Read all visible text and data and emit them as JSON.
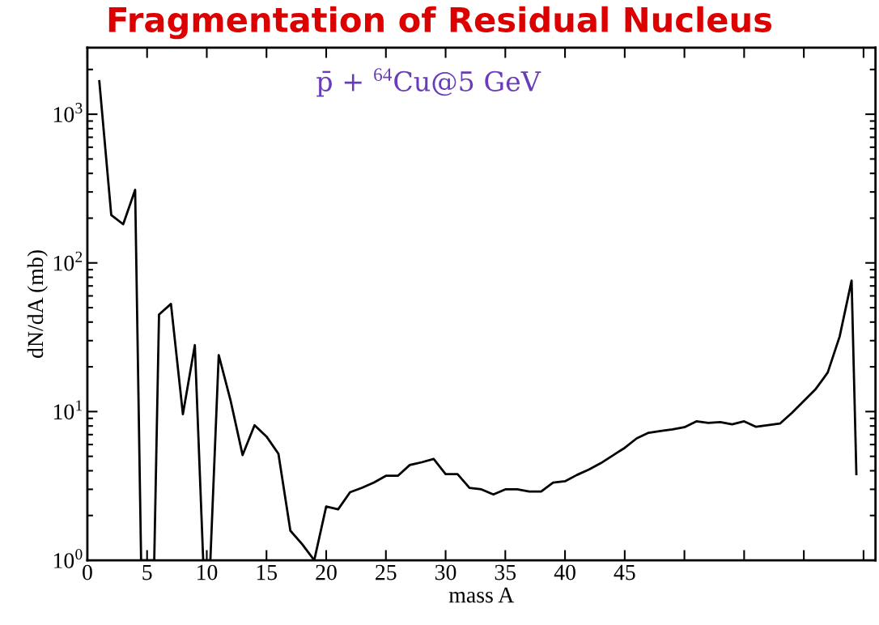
{
  "chart_data": {
    "type": "line",
    "title": "Fragmentation of Residual Nucleus",
    "xlabel": "mass A",
    "ylabel": "dN/dA (mb)",
    "annotations": [
      "p̄ + $^{64}$Cu@5 GeV"
    ],
    "log": true,
    "grid": false,
    "marker": "none",
    "line_style": "solid",
    "xlim": [
      0,
      66
    ],
    "xticks": [
      0,
      5,
      10,
      15,
      20,
      25,
      30,
      35,
      40,
      45,
      {
        "value": 50,
        "label": null
      },
      {
        "value": 55,
        "label": null
      },
      {
        "value": 60,
        "label": null
      },
      {
        "value": 65,
        "label": null
      }
    ],
    "ylim": [
      1,
      2800
    ],
    "yticks": [
      {
        "value": 1,
        "label": "10$^{0}$"
      },
      {
        "value": 10,
        "label": "10$^{1}$"
      },
      {
        "value": 100,
        "label": "10$^{2}$"
      },
      {
        "value": 1000,
        "label": "10$^{3}$"
      }
    ],
    "series": [
      {
        "color": "#000000",
        "x": [
          1,
          2,
          3,
          4,
          4.5,
          5.6,
          6,
          7,
          8,
          9,
          9.7,
          10.3,
          11,
          12,
          13,
          14,
          15,
          16,
          17,
          18,
          19,
          20,
          21,
          22,
          23,
          24,
          25,
          26,
          27,
          28,
          29,
          30,
          31,
          32,
          33,
          34,
          35,
          36,
          37,
          38,
          39,
          40,
          41,
          42,
          43,
          44,
          45,
          46,
          47,
          48,
          49,
          50,
          51,
          52,
          53,
          54,
          55,
          56,
          57,
          58,
          59,
          60,
          61,
          62,
          63,
          64,
          64.4
        ],
        "values": [
          1670,
          210,
          182,
          310,
          1,
          1,
          45,
          53,
          9.6,
          28,
          1,
          1,
          24,
          11.8,
          5.1,
          8.1,
          6.8,
          5.2,
          1.58,
          1.28,
          1.0,
          2.3,
          2.2,
          2.87,
          3.07,
          3.33,
          3.7,
          3.7,
          4.37,
          4.56,
          4.8,
          3.8,
          3.8,
          3.07,
          3.0,
          2.77,
          3.0,
          3.0,
          2.9,
          2.9,
          3.33,
          3.4,
          3.75,
          4.07,
          4.5,
          5.07,
          5.7,
          6.6,
          7.2,
          7.4,
          7.6,
          7.85,
          8.6,
          8.4,
          8.5,
          8.2,
          8.6,
          7.9,
          8.1,
          8.3,
          9.8,
          11.8,
          14.2,
          18.3,
          32,
          76,
          3.8
        ]
      }
    ]
  }
}
